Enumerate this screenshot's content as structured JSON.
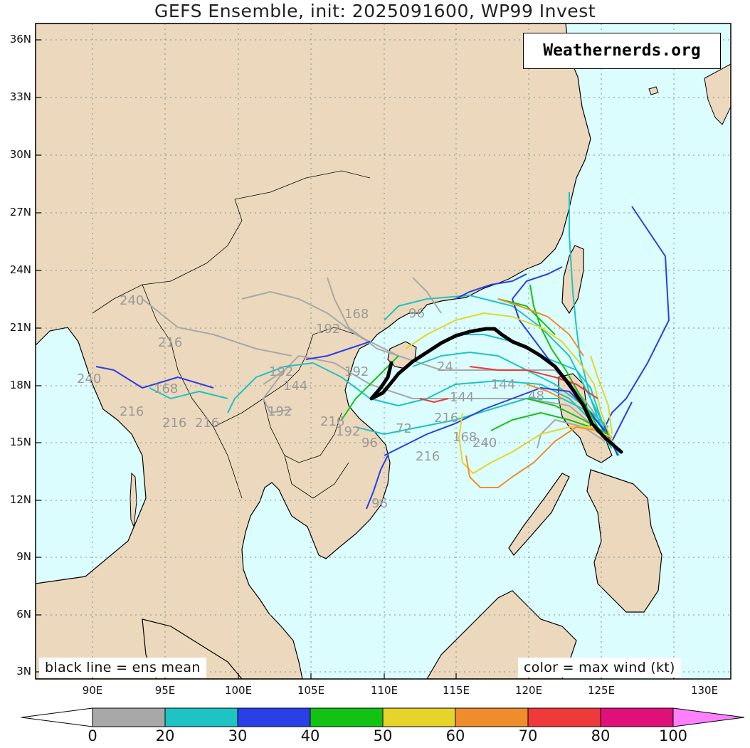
{
  "title": "GEFS Ensemble, init: 2025091600, WP99 Invest",
  "watermark": "Weathernerds.org",
  "notes": {
    "left": "black line = ens mean",
    "right": "color = max wind (kt)"
  },
  "latitude_labels": [
    "36N",
    "33N",
    "30N",
    "27N",
    "24N",
    "21N",
    "18N",
    "15N",
    "12N",
    "9N",
    "6N",
    "3N"
  ],
  "longitude_labels": [
    "90E",
    "95E",
    "100E",
    "105E",
    "110E",
    "115E",
    "120E",
    "125E",
    "130E"
  ],
  "colorbar": {
    "labels": [
      "0",
      "20",
      "30",
      "40",
      "50",
      "60",
      "70",
      "80",
      "100"
    ],
    "bins": [
      {
        "range": "0-20",
        "color": "#a8a8a8"
      },
      {
        "range": "20-30",
        "color": "#1ec3c3"
      },
      {
        "range": "30-40",
        "color": "#2b3fe6"
      },
      {
        "range": "40-50",
        "color": "#13c313"
      },
      {
        "range": "50-60",
        "color": "#e6d42a"
      },
      {
        "range": "60-70",
        "color": "#ef8d2c"
      },
      {
        "range": "70-80",
        "color": "#ee3a3a"
      },
      {
        "range": "80-100",
        "color": "#e0107a"
      },
      {
        "range": ">100",
        "color": "#ff80ff"
      }
    ]
  },
  "colors": {
    "ocean": "#dcfdfe",
    "land": "#ecd9bd",
    "ens_mean": "#000000"
  },
  "forecast_hour_labels": [
    "240",
    "216",
    "240",
    "216",
    "192",
    "216",
    "144",
    "192",
    "216",
    "192",
    "168",
    "96",
    "192",
    "216",
    "216",
    "144",
    "168",
    "240",
    "144",
    "48",
    "192",
    "168",
    "96",
    "216",
    "24",
    "72",
    "96"
  ],
  "tracks": [
    {
      "wind_bin": "0-20"
    },
    {
      "wind_bin": "20-30"
    },
    {
      "wind_bin": "30-40"
    },
    {
      "wind_bin": "40-50"
    },
    {
      "wind_bin": "50-60"
    },
    {
      "wind_bin": "60-70"
    },
    {
      "wind_bin": "70-80"
    }
  ]
}
